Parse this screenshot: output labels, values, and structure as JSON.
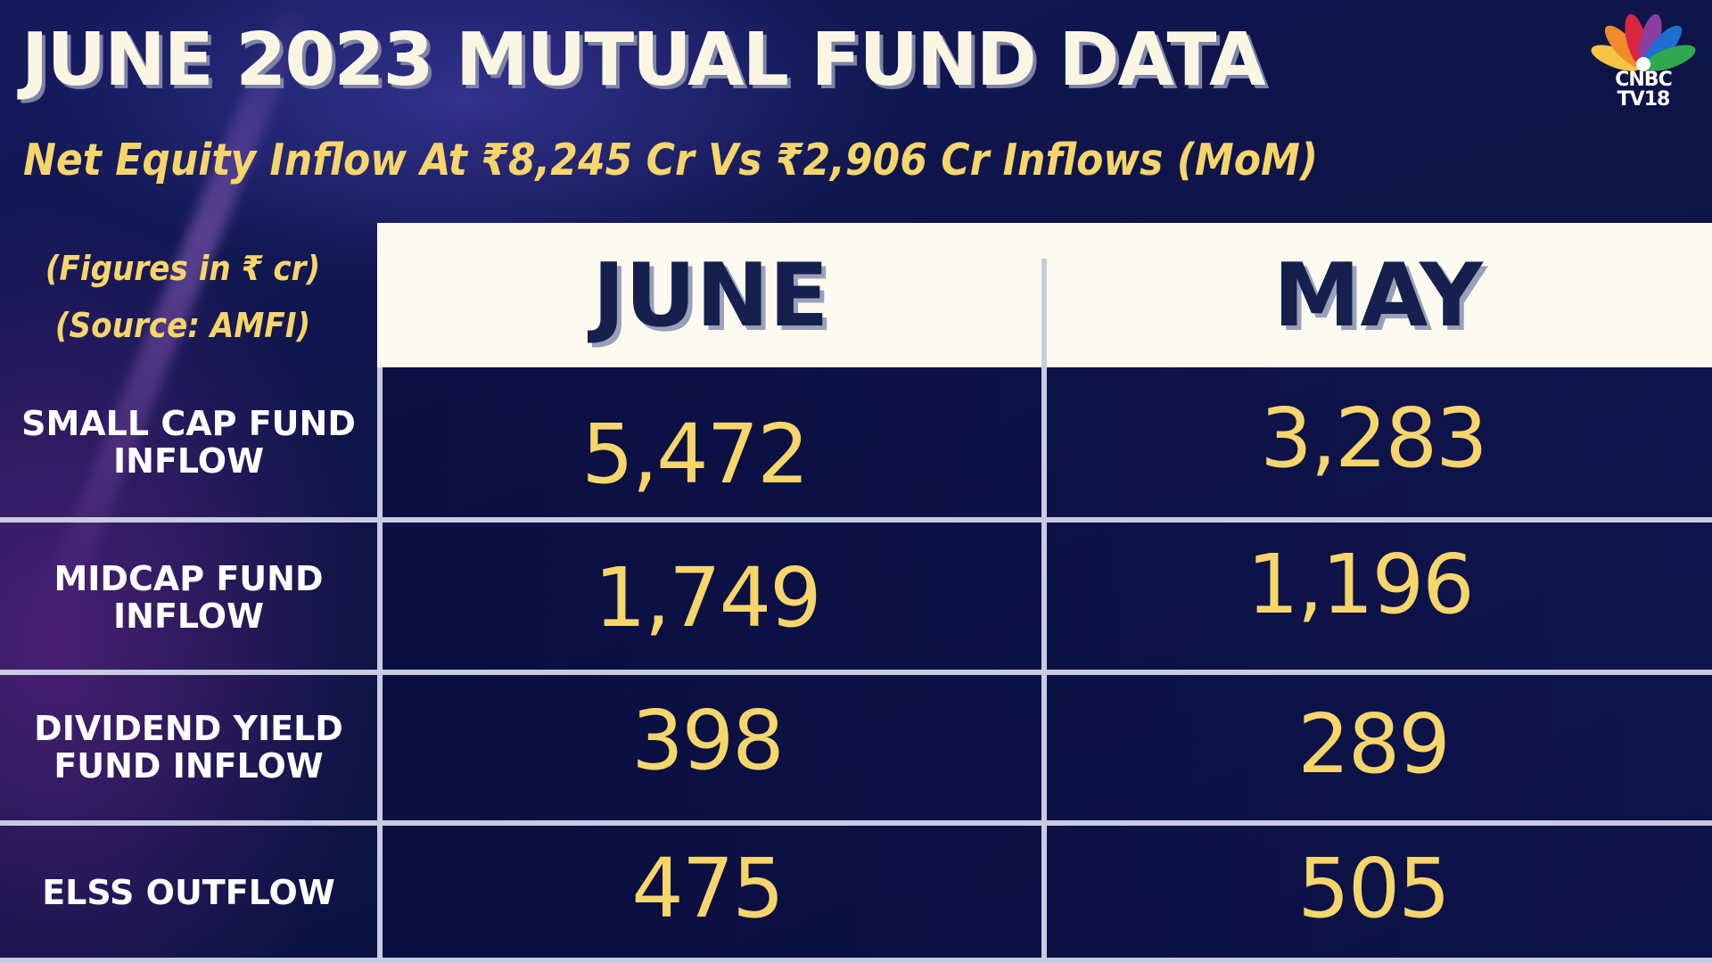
{
  "title": "JUNE 2023 MUTUAL FUND DATA",
  "subtitle": "Net Equity Inflow At ₹8,245 Cr Vs ₹2,906 Cr Inflows (MoM)",
  "logo": {
    "line1": "CNBC",
    "line2": "TV18",
    "peacock_colors": [
      "#f6c445",
      "#f08a2c",
      "#d7263d",
      "#8c3fa0",
      "#1e6fd1",
      "#2fa84f"
    ]
  },
  "notes": {
    "figures": "(Figures in ₹ cr)",
    "source": "(Source: AMFI)"
  },
  "table": {
    "columns": [
      "JUNE",
      "MAY"
    ],
    "rows": [
      {
        "label_lines": [
          "SMALL CAP FUND",
          "INFLOW"
        ],
        "june": "5,472",
        "may": "3,283"
      },
      {
        "label_lines": [
          "MIDCAP FUND",
          "INFLOW"
        ],
        "june": "1,749",
        "may": "1,196"
      },
      {
        "label_lines": [
          "DIVIDEND YIELD",
          "FUND INFLOW"
        ],
        "june": "398",
        "may": "289"
      },
      {
        "label_lines": [
          "ELSS OUTFLOW"
        ],
        "june": "475",
        "may": "505"
      }
    ]
  },
  "colors": {
    "background": "#0f1448",
    "accent_yellow": "#f6d56b",
    "header_bg": "#fdfbf0",
    "header_text": "#15204e",
    "grid_line": "#c9cbe0"
  }
}
